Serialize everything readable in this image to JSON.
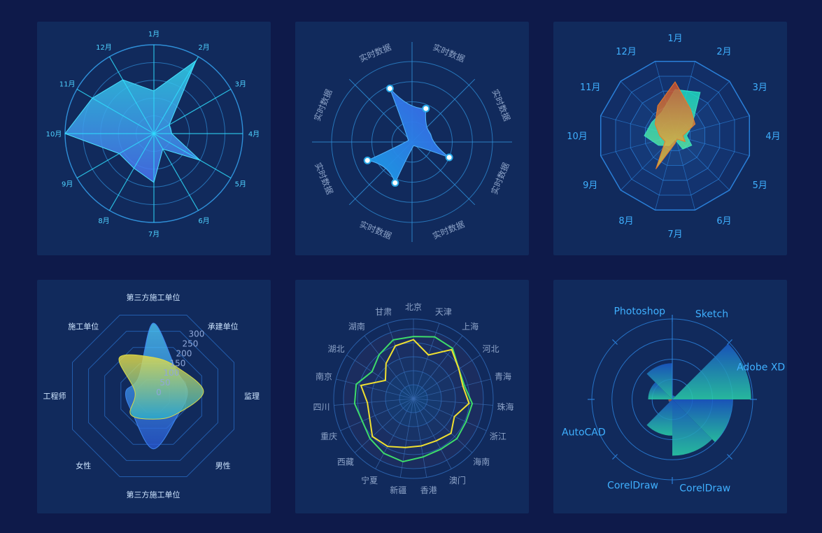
{
  "colors": {
    "background": "#0e1a4a",
    "panel": "#112a5c",
    "grid": "#2f8fd8",
    "label_cyan": "#4fd2ff",
    "label_grey": "#8ea4c8"
  },
  "chart_data": [
    {
      "id": "chart-1",
      "type": "radar",
      "categories": [
        "1月",
        "2月",
        "3月",
        "4月",
        "5月",
        "6月",
        "7月",
        "8月",
        "9月",
        "10月",
        "11月",
        "12月"
      ],
      "rlim": [
        0,
        100
      ],
      "series": [
        {
          "values": [
            48,
            95,
            20,
            20,
            60,
            20,
            55,
            45,
            45,
            100,
            80,
            70
          ]
        }
      ],
      "colors": {
        "fill_start": "#2fd3e8",
        "fill_end": "#4a6ff0",
        "axis": "#2fe0ff"
      }
    },
    {
      "id": "chart-2",
      "type": "radar",
      "categories": [
        "实时数据",
        "实时数据",
        "实时数据",
        "实时数据",
        "实时数据",
        "实时数据",
        "实时数据",
        "实时数据"
      ],
      "rlim": [
        0,
        100
      ],
      "series": [
        {
          "values": [
            45,
            25,
            50,
            5,
            55,
            60,
            5,
            72
          ]
        }
      ],
      "colors": {
        "fill_start": "#3f5fe8",
        "fill_end": "#1aa0e8",
        "point": "#ffffff"
      }
    },
    {
      "id": "chart-3",
      "type": "radar",
      "categories": [
        "1月",
        "2月",
        "3月",
        "4月",
        "5月",
        "6月",
        "7月",
        "8月",
        "9月",
        "10月",
        "11月",
        "12月"
      ],
      "rlim": [
        0,
        100
      ],
      "series": [
        {
          "values": [
            60,
            65,
            25,
            15,
            25,
            20,
            5,
            15,
            25,
            40,
            35,
            35
          ],
          "color": "#35e0c0"
        },
        {
          "values": [
            70,
            40,
            30,
            10,
            15,
            5,
            10,
            50,
            15,
            20,
            30,
            45
          ],
          "color": "#e87a2a"
        }
      ]
    },
    {
      "id": "chart-4",
      "type": "radar",
      "categories": [
        "第三方施工单位",
        "承建单位",
        "监理",
        "男性",
        "第三方施工单位",
        "女性",
        "工程师",
        "施工单位"
      ],
      "ticks": [
        0,
        50,
        100,
        150,
        200,
        250,
        300
      ],
      "rlim": [
        0,
        300
      ],
      "series": [
        {
          "values": [
            300,
            140,
            150,
            150,
            250,
            130,
            120,
            90
          ],
          "color": "#3d86f0"
        },
        {
          "values": [
            150,
            150,
            220,
            140,
            120,
            140,
            80,
            210
          ],
          "color": "#d8d84a"
        }
      ]
    },
    {
      "id": "chart-5",
      "type": "radar",
      "categories": [
        "北京",
        "天津",
        "上海",
        "河北",
        "青海",
        "珠海",
        "浙江",
        "海南",
        "澳门",
        "香港",
        "新疆",
        "宁夏",
        "西藏",
        "重庆",
        "四川",
        "南京",
        "湖北",
        "湖南",
        "甘肃"
      ],
      "rlim": [
        0,
        100
      ],
      "series": [
        {
          "values": [
            78,
            82,
            80,
            68,
            66,
            74,
            72,
            74,
            72,
            74,
            80,
            78,
            74,
            70,
            74,
            74,
            62,
            70,
            78
          ],
          "color": "#3ddc6a"
        },
        {
          "values": [
            74,
            58,
            78,
            68,
            64,
            70,
            56,
            64,
            60,
            60,
            62,
            68,
            70,
            60,
            58,
            68,
            42,
            56,
            70
          ],
          "color": "#f0e030"
        }
      ]
    },
    {
      "id": "chart-6",
      "type": "polar-bar",
      "categories": [
        "Sketch",
        "Adobe XD",
        "",
        "CorelDraw",
        "CorelDraw",
        "AutoCAD",
        "",
        "Photoshop"
      ],
      "rlim": [
        0,
        100
      ],
      "series": [
        {
          "values": [
            5,
            98,
            75,
            70,
            45,
            5,
            30,
            45
          ]
        }
      ],
      "colors": {
        "bar_start": "#1a5ac8",
        "bar_end": "#2ad0a8",
        "bar_warm": "#c85a28"
      }
    }
  ]
}
